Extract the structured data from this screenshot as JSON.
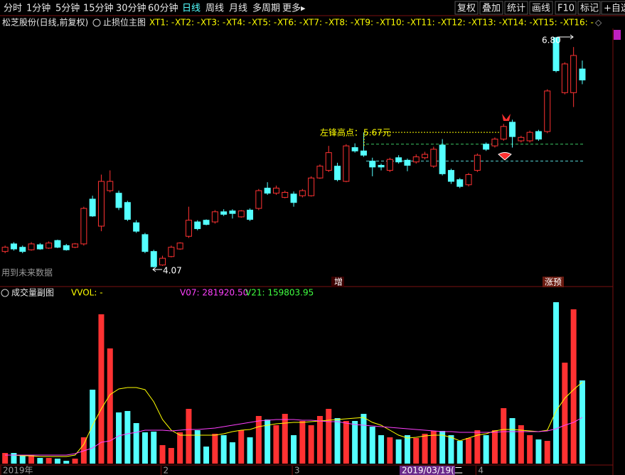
{
  "toolbar": {
    "left": [
      "分时",
      "1分钟",
      "5分钟",
      "15分钟",
      "30分钟",
      "60分钟",
      "日线",
      "周线",
      "月线",
      "多周期",
      "更多▸"
    ],
    "active": "日线",
    "right": [
      "复权",
      "叠加",
      "统计",
      "画线",
      "F10",
      "标记",
      "+自选"
    ]
  },
  "header": {
    "stock": "松芝股份(日线,前复权)",
    "indicator": "止损位主图",
    "xt": [
      "XT1: -",
      "XT2: -",
      "XT3: -",
      "XT4: -",
      "XT5: -",
      "XT6: -",
      "XT7: -",
      "XT8: -",
      "XT9: -",
      "XT10: -",
      "XT11: -",
      "XT12: -",
      "XT13: -",
      "XT14: -",
      "XT15: -",
      "XT16: -"
    ]
  },
  "chart_data": [
    {
      "type": "candlestick",
      "open": [
        4.26,
        4.35,
        4.31,
        4.28,
        4.34,
        4.3,
        4.39,
        4.33,
        4.31,
        4.35,
        4.88,
        4.56,
        4.98,
        4.95,
        4.84,
        4.6,
        4.46,
        4.26,
        4.1,
        4.2,
        4.29,
        4.44,
        4.61,
        4.63,
        4.61,
        4.73,
        4.74,
        4.67,
        4.75,
        4.77,
        5.01,
        4.95,
        4.9,
        4.94,
        4.92,
        4.92,
        5.13,
        5.22,
        5.27,
        5.09,
        5.49,
        5.45,
        5.33,
        5.28,
        5.22,
        5.37,
        5.34,
        5.32,
        5.37,
        5.27,
        5.52,
        5.22,
        5.11,
        5.05,
        5.22,
        5.53,
        5.51,
        5.59,
        5.79,
        5.57,
        5.57,
        5.68,
        5.68,
        6.79,
        6.14,
        6.14,
        6.42
      ],
      "high": [
        4.33,
        4.37,
        4.33,
        4.37,
        4.36,
        4.38,
        4.4,
        4.35,
        4.36,
        4.79,
        4.92,
        5.17,
        5.22,
        4.98,
        4.86,
        4.63,
        4.48,
        4.28,
        4.21,
        4.33,
        4.37,
        4.79,
        4.63,
        4.64,
        4.75,
        4.76,
        4.76,
        4.75,
        4.77,
        5.0,
        5.08,
        5.04,
        4.98,
        4.97,
        5.0,
        5.15,
        5.29,
        5.51,
        5.31,
        5.53,
        5.54,
        5.67,
        5.37,
        5.3,
        5.37,
        5.4,
        5.36,
        5.41,
        5.44,
        5.5,
        5.59,
        5.24,
        5.13,
        5.19,
        5.42,
        5.55,
        5.61,
        5.77,
        5.82,
        5.63,
        5.69,
        5.7,
        6.18,
        6.8,
        6.5,
        6.68,
        6.52
      ],
      "low": [
        4.24,
        4.27,
        4.24,
        4.27,
        4.28,
        4.29,
        4.3,
        4.27,
        4.3,
        4.33,
        4.67,
        4.5,
        4.96,
        4.75,
        4.62,
        4.48,
        4.24,
        4.07,
        4.09,
        4.19,
        4.28,
        4.42,
        4.51,
        4.57,
        4.59,
        4.68,
        4.65,
        4.66,
        4.62,
        4.75,
        4.93,
        4.93,
        4.89,
        4.79,
        4.9,
        4.91,
        5.12,
        5.2,
        5.09,
        5.08,
        5.43,
        5.38,
        5.15,
        5.22,
        5.2,
        5.3,
        5.21,
        5.3,
        5.35,
        5.25,
        5.16,
        5.06,
        5.01,
        5.03,
        5.2,
        5.45,
        5.49,
        5.57,
        5.49,
        5.55,
        5.55,
        5.57,
        5.66,
        6.38,
        6.12,
        5.97,
        6.24
      ],
      "close": [
        4.31,
        4.29,
        4.26,
        4.35,
        4.29,
        4.36,
        4.31,
        4.28,
        4.35,
        4.77,
        4.68,
        5.09,
        5.09,
        4.78,
        4.64,
        4.5,
        4.26,
        4.08,
        4.18,
        4.31,
        4.36,
        4.63,
        4.53,
        4.58,
        4.73,
        4.7,
        4.71,
        4.74,
        4.64,
        4.98,
        4.95,
        5.01,
        4.96,
        4.84,
        4.98,
        5.13,
        5.27,
        5.43,
        5.11,
        5.51,
        5.45,
        5.4,
        5.26,
        5.26,
        5.35,
        5.32,
        5.28,
        5.38,
        5.41,
        5.47,
        5.18,
        5.09,
        5.03,
        5.17,
        5.4,
        5.47,
        5.59,
        5.74,
        5.62,
        5.61,
        5.67,
        5.59,
        6.16,
        6.4,
        6.48,
        6.58,
        6.29
      ],
      "up_color": "#ff3232",
      "down_color": "#54ffff",
      "ylim": [
        3.87,
        6.9
      ],
      "levels": [
        {
          "value": 5.67,
          "color": "#ffff00"
        },
        {
          "value": 5.53,
          "color": "#3cc864"
        },
        {
          "value": 5.33,
          "color": "#54d0d0"
        }
      ],
      "annotations": [
        {
          "text": "6.80",
          "color": "#ffffff"
        },
        {
          "text": "4.07",
          "color": "#ffffff"
        },
        {
          "text": "左锋高点：",
          "color": "#ffff00"
        },
        {
          "text": "5.67元",
          "color": "#ffff00"
        },
        {
          "text": "用到未来数据",
          "color": "#9a9a9a"
        },
        {
          "text": "增",
          "color": "#ffffff"
        },
        {
          "text": "涨预",
          "color": "#ffffff"
        }
      ]
    },
    {
      "type": "volume",
      "title": "成交量副图",
      "labels": [
        {
          "text": "VVOL: -",
          "color": "#ffff00"
        },
        {
          "text": "V07: 281920.50",
          "color": "#ff40ff"
        },
        {
          "text": "V21: 159803.95",
          "color": "#40ff40"
        }
      ],
      "categories": [
        "2019年",
        null,
        null,
        null,
        null,
        null,
        null,
        null,
        null,
        null,
        null,
        null,
        null,
        null,
        null,
        null,
        null,
        null,
        "2",
        null,
        null,
        null,
        null,
        null,
        null,
        null,
        null,
        null,
        null,
        null,
        null,
        null,
        null,
        "3",
        null,
        null,
        null,
        null,
        null,
        null,
        null,
        null,
        null,
        null,
        null,
        null,
        null,
        null,
        null,
        null,
        null,
        null,
        null,
        null,
        "4",
        null,
        null,
        null,
        null,
        null,
        null,
        null,
        null,
        null,
        null,
        null,
        null
      ],
      "cursor_label": "2019/03/19(二",
      "values": [
        36900,
        36900,
        29520,
        29520,
        19680,
        19680,
        17220,
        9840,
        17220,
        91020,
        255840,
        516600,
        398520,
        177120,
        182040,
        140220,
        108240,
        110700,
        63960,
        54120,
        108240,
        189420,
        115620,
        59040,
        103320,
        98400,
        73800,
        115620,
        91020,
        164820,
        152520,
        132840,
        172200,
        98400,
        147600,
        132840,
        164820,
        189420,
        157440,
        147600,
        147600,
        172200,
        127920,
        98400,
        91020,
        83640,
        98400,
        88560,
        103320,
        113160,
        113160,
        98400,
        78720,
        88560,
        115620,
        98400,
        115620,
        191880,
        157440,
        132840,
        98400,
        83640,
        78720,
        558420,
        349320,
        533820,
        287820
      ],
      "series": [
        {
          "color": "#ffff00",
          "values": [
            29520,
            29520,
            27060,
            27060,
            24600,
            24600,
            24600,
            24600,
            29520,
            66420,
            132840,
            189420,
            238620,
            258300,
            263220,
            263220,
            255840,
            214020,
            152520,
            115620,
            98400,
            98400,
            98400,
            98400,
            98400,
            103320,
            110700,
            115620,
            118080,
            127920,
            132840,
            137760,
            140220,
            142680,
            142680,
            145140,
            147600,
            150060,
            152520,
            154980,
            157440,
            159900,
            142680,
            132840,
            115620,
            98400,
            88560,
            91020,
            95940,
            98400,
            98400,
            91020,
            78720,
            88560,
            98400,
            103320,
            113160,
            118080,
            118080,
            115620,
            113160,
            110700,
            115620,
            182040,
            226320,
            255840,
            281920.5
          ]
        },
        {
          "color": "#ff40ff",
          "values": [
            29520,
            29520,
            29520,
            29520,
            29520,
            29520,
            29520,
            29520,
            34440,
            44280,
            54120,
            73800,
            78720,
            95940,
            103320,
            108240,
            115620,
            115620,
            115620,
            113160,
            115620,
            118080,
            118080,
            120540,
            123000,
            127920,
            132840,
            137760,
            142680,
            147600,
            150060,
            152520,
            152520,
            152520,
            150060,
            150060,
            147600,
            145140,
            145140,
            140220,
            135300,
            132840,
            130380,
            127920,
            125460,
            123000,
            120540,
            118080,
            115620,
            113160,
            110700,
            110700,
            108240,
            108240,
            108240,
            108240,
            108240,
            110700,
            110700,
            110700,
            110700,
            110700,
            113160,
            120540,
            132840,
            142680,
            159803.95
          ]
        }
      ],
      "ylim": [
        0,
        575640
      ]
    }
  ]
}
